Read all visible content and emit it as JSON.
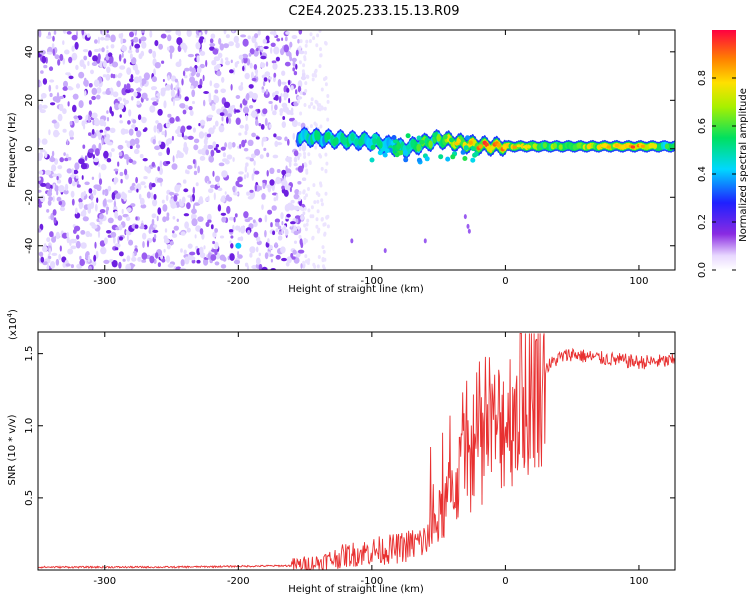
{
  "title": "C2E4.2025.233.15.13.R09",
  "colors": {
    "snr_line": "#e83030",
    "speckle": "#7a2fe0",
    "axis": "#000000"
  },
  "chart_data": [
    {
      "type": "heatmap",
      "xlabel": "Height of straight line (km)",
      "ylabel": "Frequency (Hz)",
      "xlim": [
        -350,
        127
      ],
      "ylim": [
        -50,
        49
      ],
      "x_ticks": [
        -300,
        -200,
        -100,
        0,
        100
      ],
      "y_ticks": [
        -40,
        -20,
        0,
        20,
        40
      ],
      "colorbar": {
        "label": "Normalized spectral amplitude",
        "range": [
          0,
          1
        ],
        "ticks": [
          0.0,
          0.2,
          0.4,
          0.6,
          0.8
        ],
        "colormap": "rainbow (white-violet-blue-cyan-green-yellow-red)"
      },
      "noise_region_x": [
        -350,
        -155
      ],
      "signal_ridge": [
        {
          "x": -155,
          "freq": 5,
          "amp": 0.45
        },
        {
          "x": -130,
          "freq": 4,
          "amp": 0.5
        },
        {
          "x": -100,
          "freq": 3,
          "amp": 0.45
        },
        {
          "x": -75,
          "freq": 0,
          "amp": 0.5
        },
        {
          "x": -50,
          "freq": 4,
          "amp": 0.6
        },
        {
          "x": -30,
          "freq": 2,
          "amp": 0.8
        },
        {
          "x": -10,
          "freq": 1,
          "amp": 0.9
        },
        {
          "x": 10,
          "freq": 1,
          "amp": 0.75
        },
        {
          "x": 40,
          "freq": 1,
          "amp": 0.6
        },
        {
          "x": 90,
          "freq": 1,
          "amp": 0.9
        },
        {
          "x": 127,
          "freq": 1,
          "amp": 0.5
        }
      ]
    },
    {
      "type": "line",
      "xlabel": "Height of straight line (km)",
      "ylabel": "SNR (10 * v/v)",
      "scale_note": "(x10",
      "scale_exp": "4",
      "scale_close": ")",
      "xlim": [
        -350,
        127
      ],
      "ylim": [
        0,
        1.65
      ],
      "x_ticks": [
        -300,
        -200,
        -100,
        0,
        100
      ],
      "y_ticks": [
        0.5,
        1.0,
        1.5
      ],
      "y_tick_labels": [
        "0.5",
        "1.0",
        "1.5"
      ],
      "series": [
        {
          "x": [
            -350,
            -250,
            -160,
            -140,
            -120,
            -100,
            -80,
            -60,
            -50,
            -40,
            -30,
            -20,
            -10,
            0,
            10,
            20,
            30,
            40,
            50,
            60,
            80,
            100,
            127
          ],
          "values": [
            0.02,
            0.02,
            0.03,
            0.05,
            0.1,
            0.13,
            0.15,
            0.2,
            0.35,
            0.55,
            0.75,
            0.85,
            0.95,
            1.05,
            1.15,
            1.25,
            1.4,
            1.47,
            1.5,
            1.48,
            1.46,
            1.44,
            1.45
          ]
        }
      ]
    }
  ]
}
